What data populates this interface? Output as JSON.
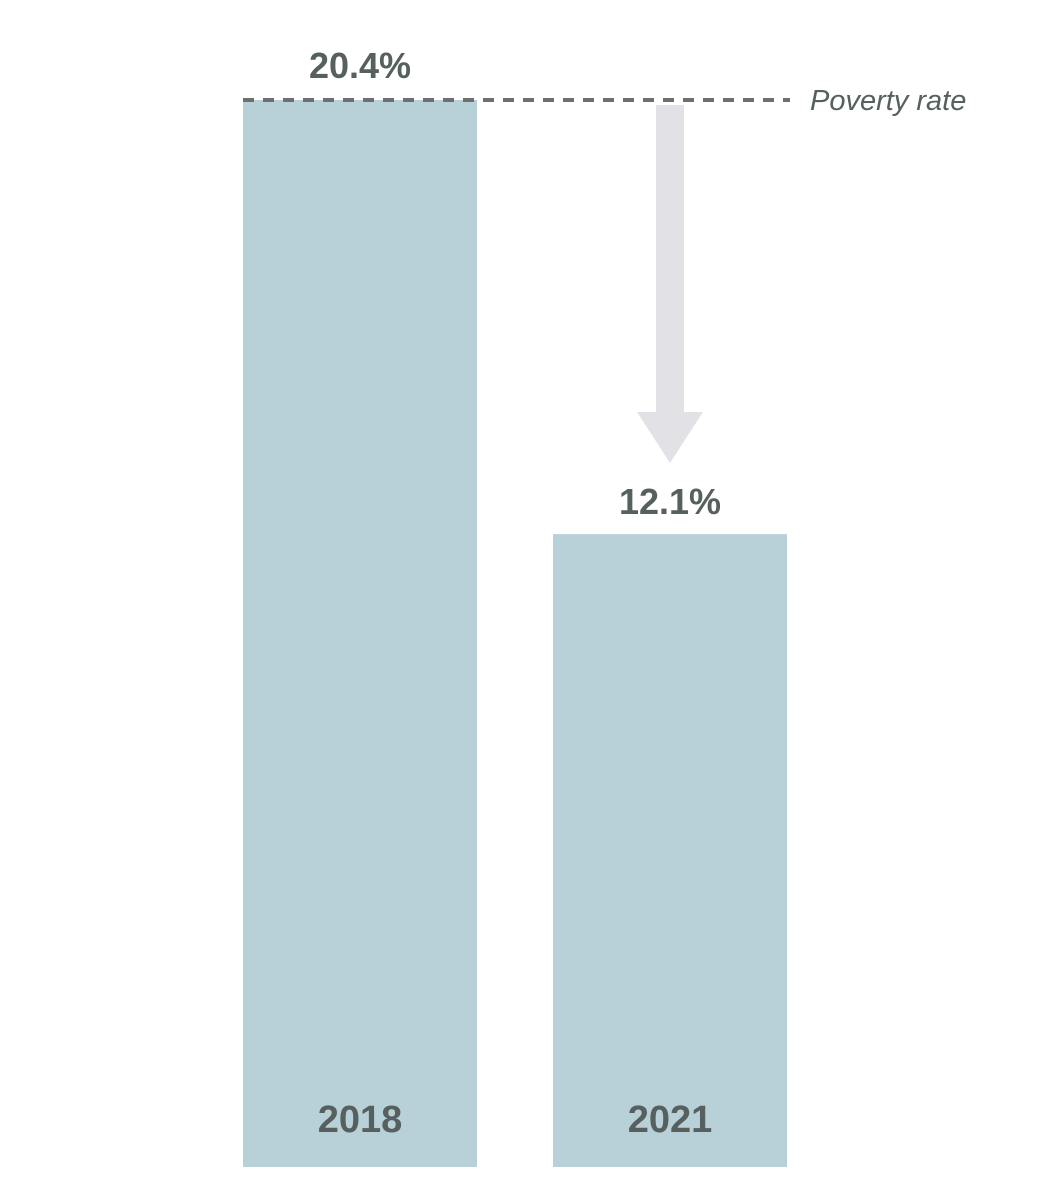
{
  "chart_data": {
    "type": "bar",
    "title": "",
    "xlabel": "",
    "ylabel": "",
    "categories": [
      "2018",
      "2021"
    ],
    "values": [
      20.4,
      12.1
    ],
    "value_labels": [
      "20.4%",
      "12.1%"
    ],
    "ylim": [
      0,
      20.4
    ],
    "grid": false,
    "legend": "none",
    "reference_line": {
      "label": "Poverty rate",
      "value": 20.4,
      "style": "dashed"
    },
    "annotation": {
      "type": "arrow-down",
      "from": 20.4,
      "to": 12.1
    }
  },
  "colors": {
    "bar": "#b8d0d8",
    "text": "#56605e",
    "dash": "#6f6f6f",
    "arrow": "#e2e2e6"
  }
}
